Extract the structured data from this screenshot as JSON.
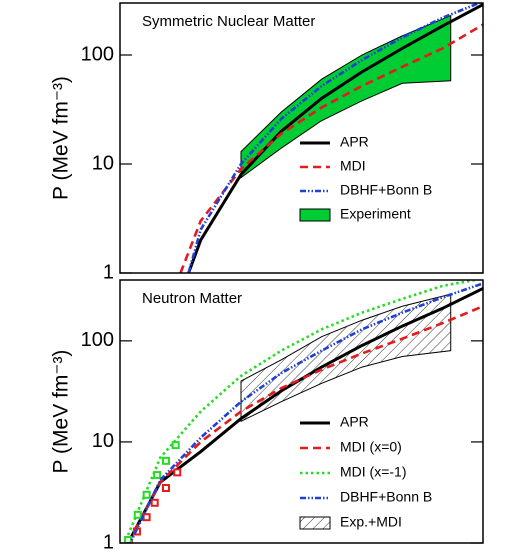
{
  "chart_data": [
    {
      "type": "line",
      "annotation": "Symmetric Nuclear Matter",
      "y_label": "P (MeV fm⁻³)",
      "xlim": [
        0.5,
        5
      ],
      "ylim": [
        1,
        300
      ],
      "yticks": [
        1,
        10,
        100
      ],
      "yscale": "log",
      "series": [
        {
          "name": "APR",
          "color": "#000000",
          "style": "solid",
          "x": [
            1.35,
            1.5,
            1.75,
            2,
            2.5,
            3,
            3.5,
            4,
            4.5,
            5
          ],
          "values": [
            1,
            2,
            4,
            8,
            20,
            40,
            70,
            115,
            185,
            290
          ]
        },
        {
          "name": "MDI",
          "color": "#e41a1c",
          "style": "dash",
          "x": [
            1.25,
            1.5,
            2,
            2.5,
            3,
            3.5,
            4,
            4.5,
            5
          ],
          "values": [
            1,
            3,
            9,
            19,
            33,
            52,
            78,
            115,
            190
          ]
        },
        {
          "name": "DBHF+Bonn B",
          "color": "#1f3fd6",
          "style": "dashdot",
          "x": [
            1.35,
            1.5,
            2,
            2.5,
            3,
            3.5,
            4,
            4.5,
            5
          ],
          "values": [
            1,
            2.5,
            10,
            26,
            52,
            90,
            145,
            220,
            310
          ]
        }
      ],
      "band": {
        "name": "Experiment",
        "color": "#00cc33",
        "fill": "solid",
        "x": [
          2,
          2.5,
          3,
          3.5,
          4,
          4.6
        ],
        "upper": [
          13,
          30,
          60,
          100,
          150,
          230
        ],
        "lower": [
          7.5,
          14,
          25,
          38,
          55,
          58
        ]
      }
    },
    {
      "type": "line",
      "annotation": "Neutron Matter",
      "y_label": "P (MeV fm⁻³)",
      "xlim": [
        0.5,
        5
      ],
      "ylim": [
        1,
        400
      ],
      "yticks": [
        1,
        10,
        100
      ],
      "yscale": "log",
      "series": [
        {
          "name": "APR",
          "color": "#000000",
          "style": "solid",
          "x": [
            0.6,
            1,
            1.5,
            2,
            2.5,
            3,
            3.5,
            4,
            4.5,
            5
          ],
          "values": [
            1,
            4,
            8,
            17,
            32,
            55,
            90,
            140,
            210,
            330
          ]
        },
        {
          "name": "MDI (x=0)",
          "color": "#e41a1c",
          "style": "dash",
          "x": [
            0.6,
            1,
            1.5,
            2,
            2.5,
            3,
            3.5,
            4,
            4.5,
            5
          ],
          "values": [
            1,
            4,
            10,
            20,
            34,
            52,
            75,
            105,
            150,
            220
          ],
          "points_x": [
            0.61,
            0.71,
            0.83,
            0.93,
            1.07,
            1.21
          ],
          "points_y": [
            1,
            1.3,
            1.8,
            2.5,
            3.5,
            5
          ]
        },
        {
          "name": "MDI (x=-1)",
          "color": "#22dd22",
          "style": "dot",
          "x": [
            0.6,
            1,
            1.5,
            2,
            2.5,
            3,
            3.5,
            4,
            4.5,
            4.9
          ],
          "values": [
            1.2,
            7,
            20,
            45,
            80,
            130,
            190,
            260,
            350,
            400
          ],
          "points_x": [
            0.6,
            0.72,
            0.83,
            0.96,
            1.07,
            1.19
          ],
          "points_y": [
            1.07,
            1.9,
            3,
            4.7,
            6.5,
            9.3
          ]
        },
        {
          "name": "DBHF+Bonn B",
          "color": "#1f3fd6",
          "style": "dashdot",
          "x": [
            0.6,
            1,
            1.5,
            2,
            2.5,
            3,
            3.5,
            4,
            4.5,
            5
          ],
          "values": [
            0.9,
            4.2,
            11,
            25,
            48,
            80,
            130,
            190,
            270,
            370
          ]
        }
      ],
      "band": {
        "name": "Exp.+MDI",
        "color": "#000000",
        "fill": "hatch",
        "x": [
          2,
          2.5,
          3,
          3.5,
          4,
          4.6
        ],
        "upper": [
          40,
          65,
          110,
          160,
          220,
          290
        ],
        "lower": [
          16,
          25,
          38,
          55,
          70,
          80
        ]
      }
    }
  ]
}
